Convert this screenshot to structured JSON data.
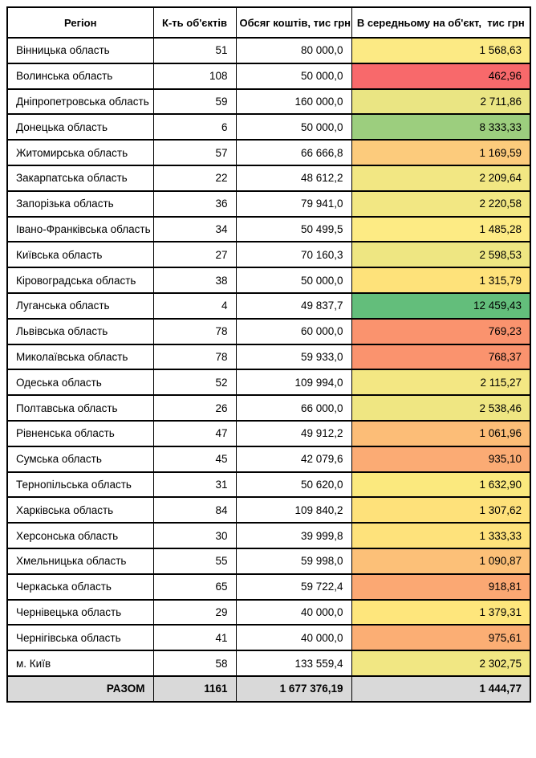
{
  "table": {
    "columns": [
      "Регіон",
      "К-ть об'єктів",
      "Обсяг коштів, тис грн",
      "В середньому на об'єкт,  тис грн"
    ],
    "rows": [
      {
        "region": "Вінницька область",
        "objects": "51",
        "funds": "80 000,0",
        "avg": "1 568,63",
        "avg_color": "#FCEA84"
      },
      {
        "region": "Волинська область",
        "objects": "108",
        "funds": "50 000,0",
        "avg": "462,96",
        "avg_color": "#F8696B"
      },
      {
        "region": "Дніпропетровська область",
        "objects": "59",
        "funds": "160 000,0",
        "avg": "2 711,86",
        "avg_color": "#EAE583"
      },
      {
        "region": "Донецька область",
        "objects": "6",
        "funds": "50 000,0",
        "avg": "8 333,33",
        "avg_color": "#9CCE7E"
      },
      {
        "region": "Житомирська область",
        "objects": "57",
        "funds": "66 666,8",
        "avg": "1 169,59",
        "avg_color": "#FCCB7C"
      },
      {
        "region": "Закарпатська область",
        "objects": "22",
        "funds": "48 612,2",
        "avg": "2 209,64",
        "avg_color": "#F2E783"
      },
      {
        "region": "Запорізька область",
        "objects": "36",
        "funds": "79 941,0",
        "avg": "2 220,58",
        "avg_color": "#F2E783"
      },
      {
        "region": "Івано-Франківська область",
        "objects": "34",
        "funds": "50 499,5",
        "avg": "1 485,28",
        "avg_color": "#FDEB84"
      },
      {
        "region": "Київська область",
        "objects": "27",
        "funds": "70 160,3",
        "avg": "2 598,53",
        "avg_color": "#EEE682"
      },
      {
        "region": "Кіровоградська область",
        "objects": "38",
        "funds": "50 000,0",
        "avg": "1 315,79",
        "avg_color": "#FEE27A"
      },
      {
        "region": "Луганська область",
        "objects": "4",
        "funds": "49 837,7",
        "avg": "12 459,43",
        "avg_color": "#63BE7B"
      },
      {
        "region": "Львівська область",
        "objects": "78",
        "funds": "60 000,0",
        "avg": "769,23",
        "avg_color": "#FA936E"
      },
      {
        "region": "Миколаївська область",
        "objects": "78",
        "funds": "59 933,0",
        "avg": "768,37",
        "avg_color": "#FA936E"
      },
      {
        "region": "Одеська область",
        "objects": "52",
        "funds": "109 994,0",
        "avg": "2 115,27",
        "avg_color": "#F3E783"
      },
      {
        "region": "Полтавська область",
        "objects": "26",
        "funds": "66 000,0",
        "avg": "2 538,46",
        "avg_color": "#EFE682"
      },
      {
        "region": "Рівненська область",
        "objects": "47",
        "funds": "49 912,2",
        "avg": "1 061,96",
        "avg_color": "#FCBD77"
      },
      {
        "region": "Сумська область",
        "objects": "45",
        "funds": "42 079,6",
        "avg": "935,10",
        "avg_color": "#FBAB74"
      },
      {
        "region": "Тернопільська область",
        "objects": "31",
        "funds": "50 620,0",
        "avg": "1 632,90",
        "avg_color": "#FBE97E"
      },
      {
        "region": "Харківська область",
        "objects": "84",
        "funds": "109 840,2",
        "avg": "1 307,62",
        "avg_color": "#FEE17A"
      },
      {
        "region": "Херсонська область",
        "objects": "30",
        "funds": "39 999,8",
        "avg": "1 333,33",
        "avg_color": "#FEE27B"
      },
      {
        "region": "Хмельницька область",
        "objects": "55",
        "funds": "59 998,0",
        "avg": "1 090,87",
        "avg_color": "#FCC078"
      },
      {
        "region": "Черкаська область",
        "objects": "65",
        "funds": "59 722,4",
        "avg": "918,81",
        "avg_color": "#FBA873"
      },
      {
        "region": "Чернівецька область",
        "objects": "29",
        "funds": "40 000,0",
        "avg": "1 379,31",
        "avg_color": "#FEE67C"
      },
      {
        "region": "Чернігівська область",
        "objects": "41",
        "funds": "40 000,0",
        "avg": "975,61",
        "avg_color": "#FBAE74"
      },
      {
        "region": "м. Київ",
        "objects": "58",
        "funds": "133 559,4",
        "avg": "2 302,75",
        "avg_color": "#F1E783"
      }
    ],
    "total": {
      "label": "РАЗОМ",
      "objects": "1161",
      "funds": "1 677 376,19",
      "avg": "1 444,77",
      "bg": "#D9D9D9"
    }
  },
  "chart_data": {
    "type": "table",
    "columns": [
      "Регіон",
      "К-ть об'єктів",
      "Обсяг коштів, тис грн",
      "В середньому на об'єкт, тис грн"
    ],
    "rows": [
      [
        "Вінницька область",
        51,
        80000.0,
        1568.63
      ],
      [
        "Волинська область",
        108,
        50000.0,
        462.96
      ],
      [
        "Дніпропетровська область",
        59,
        160000.0,
        2711.86
      ],
      [
        "Донецька область",
        6,
        50000.0,
        8333.33
      ],
      [
        "Житомирська область",
        57,
        66666.8,
        1169.59
      ],
      [
        "Закарпатська область",
        22,
        48612.2,
        2209.64
      ],
      [
        "Запорізька область",
        36,
        79941.0,
        2220.58
      ],
      [
        "Івано-Франківська область",
        34,
        50499.5,
        1485.28
      ],
      [
        "Київська область",
        27,
        70160.3,
        2598.53
      ],
      [
        "Кіровоградська область",
        38,
        50000.0,
        1315.79
      ],
      [
        "Луганська область",
        4,
        49837.7,
        12459.43
      ],
      [
        "Львівська область",
        78,
        60000.0,
        769.23
      ],
      [
        "Миколаївська область",
        78,
        59933.0,
        768.37
      ],
      [
        "Одеська область",
        52,
        109994.0,
        2115.27
      ],
      [
        "Полтавська область",
        26,
        66000.0,
        2538.46
      ],
      [
        "Рівненська область",
        47,
        49912.2,
        1061.96
      ],
      [
        "Сумська область",
        45,
        42079.6,
        935.1
      ],
      [
        "Тернопільська область",
        31,
        50620.0,
        1632.9
      ],
      [
        "Харківська область",
        84,
        109840.2,
        1307.62
      ],
      [
        "Херсонська область",
        30,
        39999.8,
        1333.33
      ],
      [
        "Хмельницька область",
        55,
        59998.0,
        1090.87
      ],
      [
        "Черкаська область",
        65,
        59722.4,
        918.81
      ],
      [
        "Чернівецька область",
        29,
        40000.0,
        1379.31
      ],
      [
        "Чернігівська область",
        41,
        40000.0,
        975.61
      ],
      [
        "м. Київ",
        58,
        133559.4,
        2302.75
      ]
    ],
    "total_row": [
      "РАЗОМ",
      1161,
      1677376.19,
      1444.77
    ],
    "conditional_formatting": {
      "applies_to_column": "В середньому на об'єкт, тис грн",
      "scale": "3-color red-yellow-green",
      "min_color": "#F8696B",
      "mid_color": "#FFEB84",
      "max_color": "#63BE7B"
    }
  }
}
